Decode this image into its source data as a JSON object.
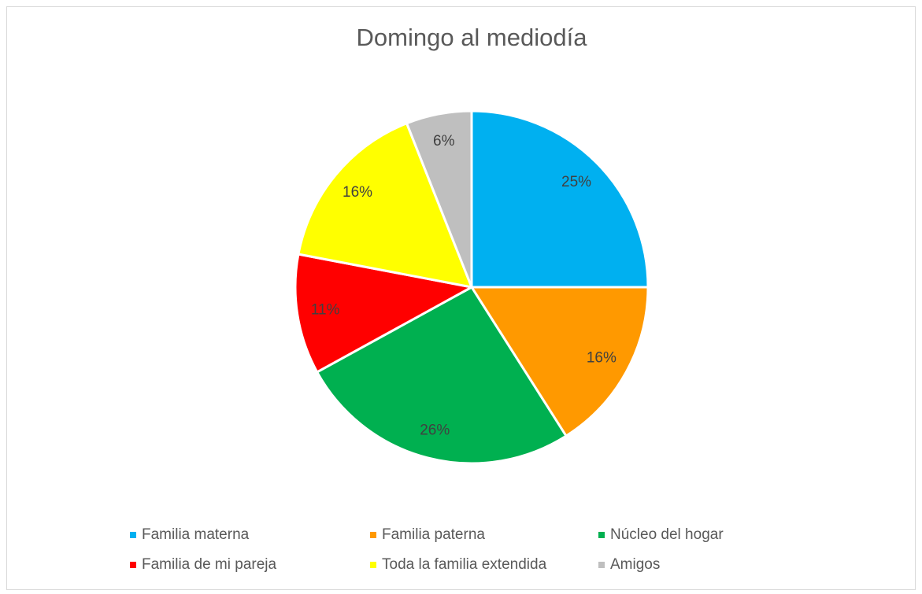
{
  "chart_data": {
    "type": "pie",
    "title": "Domingo al mediodía",
    "categories": [
      "Familia materna",
      "Familia paterna",
      "Núcleo del hogar",
      "Familia de mi pareja",
      "Toda la familia extendida",
      "Amigos"
    ],
    "values": [
      25,
      16,
      26,
      11,
      16,
      6
    ],
    "value_labels": [
      "25%",
      "16%",
      "26%",
      "11%",
      "16%",
      "6%"
    ],
    "colors": [
      "#00b0f0",
      "#ff9900",
      "#00b050",
      "#ff0000",
      "#ffff00",
      "#bfbfbf"
    ],
    "legend": "bottom"
  }
}
